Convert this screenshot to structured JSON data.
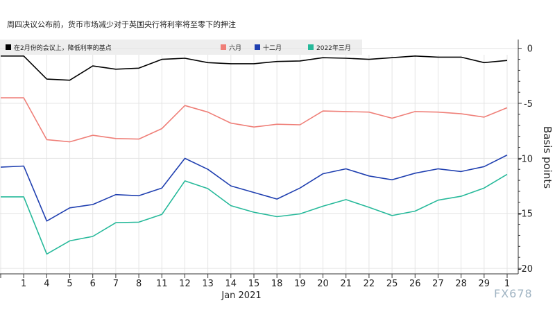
{
  "title": "周四决议公布前，货币市场减少对于英国央行将利率将至零下的押注",
  "watermark": "FX678",
  "chart_data": {
    "type": "line",
    "categories": [
      "",
      "1",
      "4",
      "5",
      "6",
      "7",
      "8",
      "11",
      "12",
      "13",
      "14",
      "15",
      "18",
      "19",
      "20",
      "21",
      "22",
      "25",
      "26",
      "27",
      "28",
      "29",
      "1"
    ],
    "x_month_label": "Jan 2021",
    "ylabel": "Basis points",
    "ylim": [
      -20.5,
      0.8
    ],
    "yticks": [
      0,
      -5,
      -10,
      -15,
      -20
    ],
    "grid": true,
    "y_axis_side": "right",
    "legend_placement": "top",
    "legend_title": "在2月份的会议上，降低利率的基点",
    "series": [
      {
        "name": "",
        "color": "#000000",
        "values": [
          -0.7,
          -0.7,
          -2.8,
          -2.9,
          -1.6,
          -1.9,
          -1.8,
          -1.0,
          -0.9,
          -1.3,
          -1.4,
          -1.4,
          -1.2,
          -1.15,
          -0.85,
          -0.9,
          -1.0,
          -0.85,
          -0.7,
          -0.8,
          -0.8,
          -1.3,
          -1.1
        ]
      },
      {
        "name": "六月",
        "color": "#ef7f78",
        "values": [
          -4.5,
          -4.5,
          -8.3,
          -8.5,
          -7.9,
          -8.2,
          -8.25,
          -7.3,
          -5.2,
          -5.8,
          -6.8,
          -7.15,
          -6.9,
          -6.95,
          -5.7,
          -5.75,
          -5.8,
          -6.35,
          -5.75,
          -5.8,
          -5.95,
          -6.25,
          -5.4
        ]
      },
      {
        "name": "十二月",
        "color": "#1f3fb0",
        "values": [
          -10.8,
          -10.7,
          -15.7,
          -14.5,
          -14.2,
          -13.3,
          -13.4,
          -12.7,
          -10.0,
          -11.0,
          -12.5,
          -13.1,
          -13.7,
          -12.7,
          -11.4,
          -10.95,
          -11.6,
          -11.95,
          -11.35,
          -10.95,
          -11.2,
          -10.75,
          -9.7
        ]
      },
      {
        "name": "2022年三月",
        "color": "#26b99a",
        "values": [
          -13.5,
          -13.5,
          -18.7,
          -17.5,
          -17.1,
          -15.85,
          -15.8,
          -15.1,
          -12.05,
          -12.75,
          -14.3,
          -14.9,
          -15.3,
          -15.05,
          -14.35,
          -13.75,
          -14.45,
          -15.2,
          -14.8,
          -13.8,
          -13.45,
          -12.7,
          -11.45
        ]
      }
    ]
  }
}
